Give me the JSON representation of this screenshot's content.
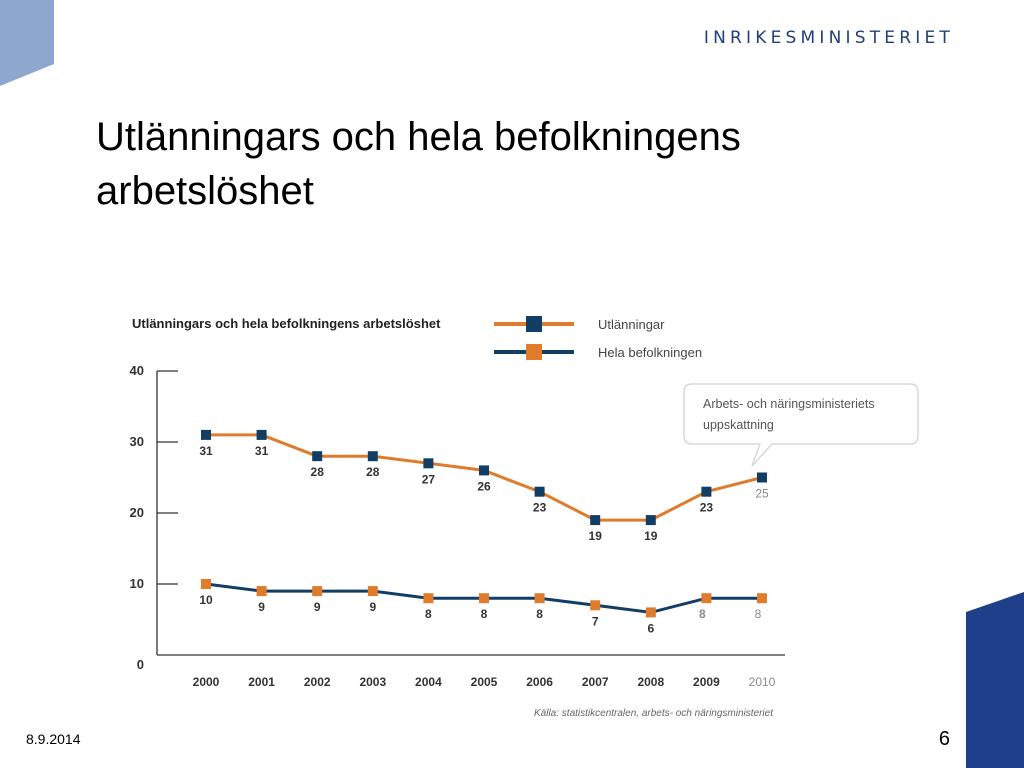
{
  "header": {
    "ministry": "INRIKESMINISTERIET"
  },
  "slide": {
    "title_line1": "Utlänningars och hela befolkningens",
    "title_line2": "arbetslöshet"
  },
  "footer": {
    "date": "8.9.2014",
    "page": "6"
  },
  "colors": {
    "orange": "#e07b2c",
    "navy": "#123e66",
    "corner_light": "#8ea7cf",
    "corner_dark": "#1f3f8a",
    "estimate_text": "#8a8a8a"
  },
  "chart_data": {
    "type": "line",
    "title": "Utlänningars och hela befolkningens arbetslöshet",
    "x": [
      "2000",
      "2001",
      "2002",
      "2003",
      "2004",
      "2005",
      "2006",
      "2007",
      "2008",
      "2009",
      "2010"
    ],
    "ylim": [
      0,
      40
    ],
    "yticks": [
      "0",
      "10",
      "20",
      "30",
      "40"
    ],
    "series": [
      {
        "name": "Utlänningar",
        "values": [
          31,
          31,
          28,
          28,
          27,
          26,
          23,
          19,
          19,
          23,
          25
        ],
        "line_color": "#e07b2c",
        "marker_color": "#123e66"
      },
      {
        "name": "Hela befolkningen",
        "values": [
          10,
          9,
          9,
          9,
          8,
          8,
          8,
          7,
          6,
          8,
          8
        ],
        "line_color": "#123e66",
        "marker_color": "#e07b2c"
      }
    ],
    "estimate_years": [
      "2009",
      "2010"
    ],
    "annotation": {
      "line1": "Arbets- och näringsministeriets",
      "line2": "uppskattning"
    },
    "source": "Källa: statistikcentralen, arbets- och näringsministeriet",
    "legend": "top-right",
    "grid": false
  }
}
